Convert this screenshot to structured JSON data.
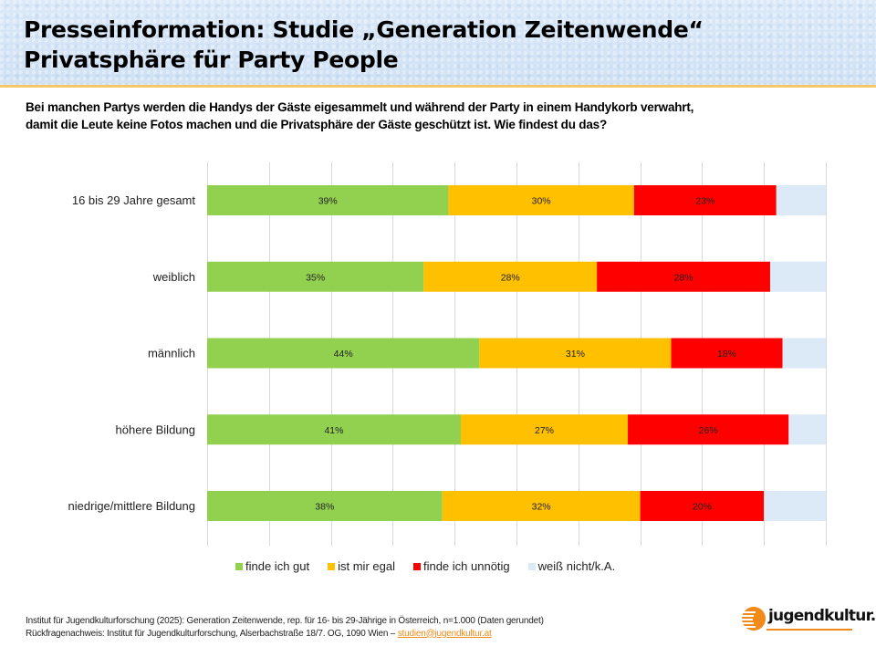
{
  "header": {
    "title_line1": "Presseinformation: Studie „Generation Zeitenwende“",
    "title_line2": "Privatsphäre für Party People"
  },
  "question": {
    "line1": "Bei manchen Partys werden die Handys der Gäste eigesammelt und während der Party in einem Handykorb verwahrt,",
    "line2": "damit die Leute keine Fotos machen und die Privatsphäre der Gäste geschützt ist. Wie findest du das?"
  },
  "chart_data": {
    "type": "bar",
    "orientation": "horizontal",
    "stacked": true,
    "normalized": true,
    "title": "",
    "xlabel": "",
    "ylabel": "",
    "xlim": [
      0,
      100
    ],
    "grid": true,
    "grid_step": 10,
    "legend_position": "bottom",
    "categories": [
      "16 bis 29 Jahre gesamt",
      "weiblich",
      "männlich",
      "höhere Bildung",
      "niedrige/mittlere Bildung"
    ],
    "series": [
      {
        "name": "finde ich gut",
        "color": "#92d050",
        "values": [
          39,
          35,
          44,
          41,
          38
        ],
        "labels": [
          "39%",
          "35%",
          "44%",
          "41%",
          "38%"
        ]
      },
      {
        "name": "ist mir egal",
        "color": "#ffc000",
        "values": [
          30,
          28,
          31,
          27,
          32
        ],
        "labels": [
          "30%",
          "28%",
          "31%",
          "27%",
          "32%"
        ]
      },
      {
        "name": "finde ich unnötig",
        "color": "#ff0000",
        "values": [
          23,
          28,
          18,
          26,
          20
        ],
        "labels": [
          "23%",
          "28%",
          "18%",
          "26%",
          "20%"
        ]
      },
      {
        "name": "weiß nicht/k.A.",
        "color": "#dce9f7",
        "values": [
          8,
          9,
          7,
          6,
          10
        ],
        "labels": [
          "",
          "",
          "",
          "",
          ""
        ]
      }
    ]
  },
  "footer": {
    "line1": "Institut für Jugendkulturforschung (2025): Generation Zeitenwende, rep. für 16- bis 29-Jährige in Österreich, n=1.000 (Daten gerundet)",
    "line2_prefix": "Rückfragenachweis: Institut für Jugendkulturforschung, Alserbachstraße 18/7. OG, 1090 Wien – ",
    "email": "studien@jugendkultur.at"
  },
  "logo": {
    "text": "jugendkultur.at"
  },
  "colors": {
    "accent": "#f28a1a",
    "header_rule": "#f6c766",
    "header_bg": "#d6e6f7"
  }
}
